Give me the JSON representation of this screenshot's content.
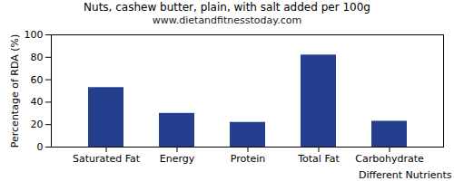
{
  "chart_data": {
    "type": "bar",
    "title": "Nuts, cashew butter, plain, with salt added per 100g",
    "subtitle": "www.dietandfitnesstoday.com",
    "x_label": "Different Nutrients",
    "y_label": "Percentage of RDA (%)",
    "categories": [
      "Saturated Fat",
      "Energy",
      "Protein",
      "Total Fat",
      "Carbohydrate"
    ],
    "values": [
      53,
      30,
      22,
      82,
      23
    ],
    "color": "#253f8f",
    "ylim": [
      0,
      100
    ],
    "yticks": [
      0,
      20,
      40,
      60,
      80,
      100
    ],
    "grid": false
  }
}
